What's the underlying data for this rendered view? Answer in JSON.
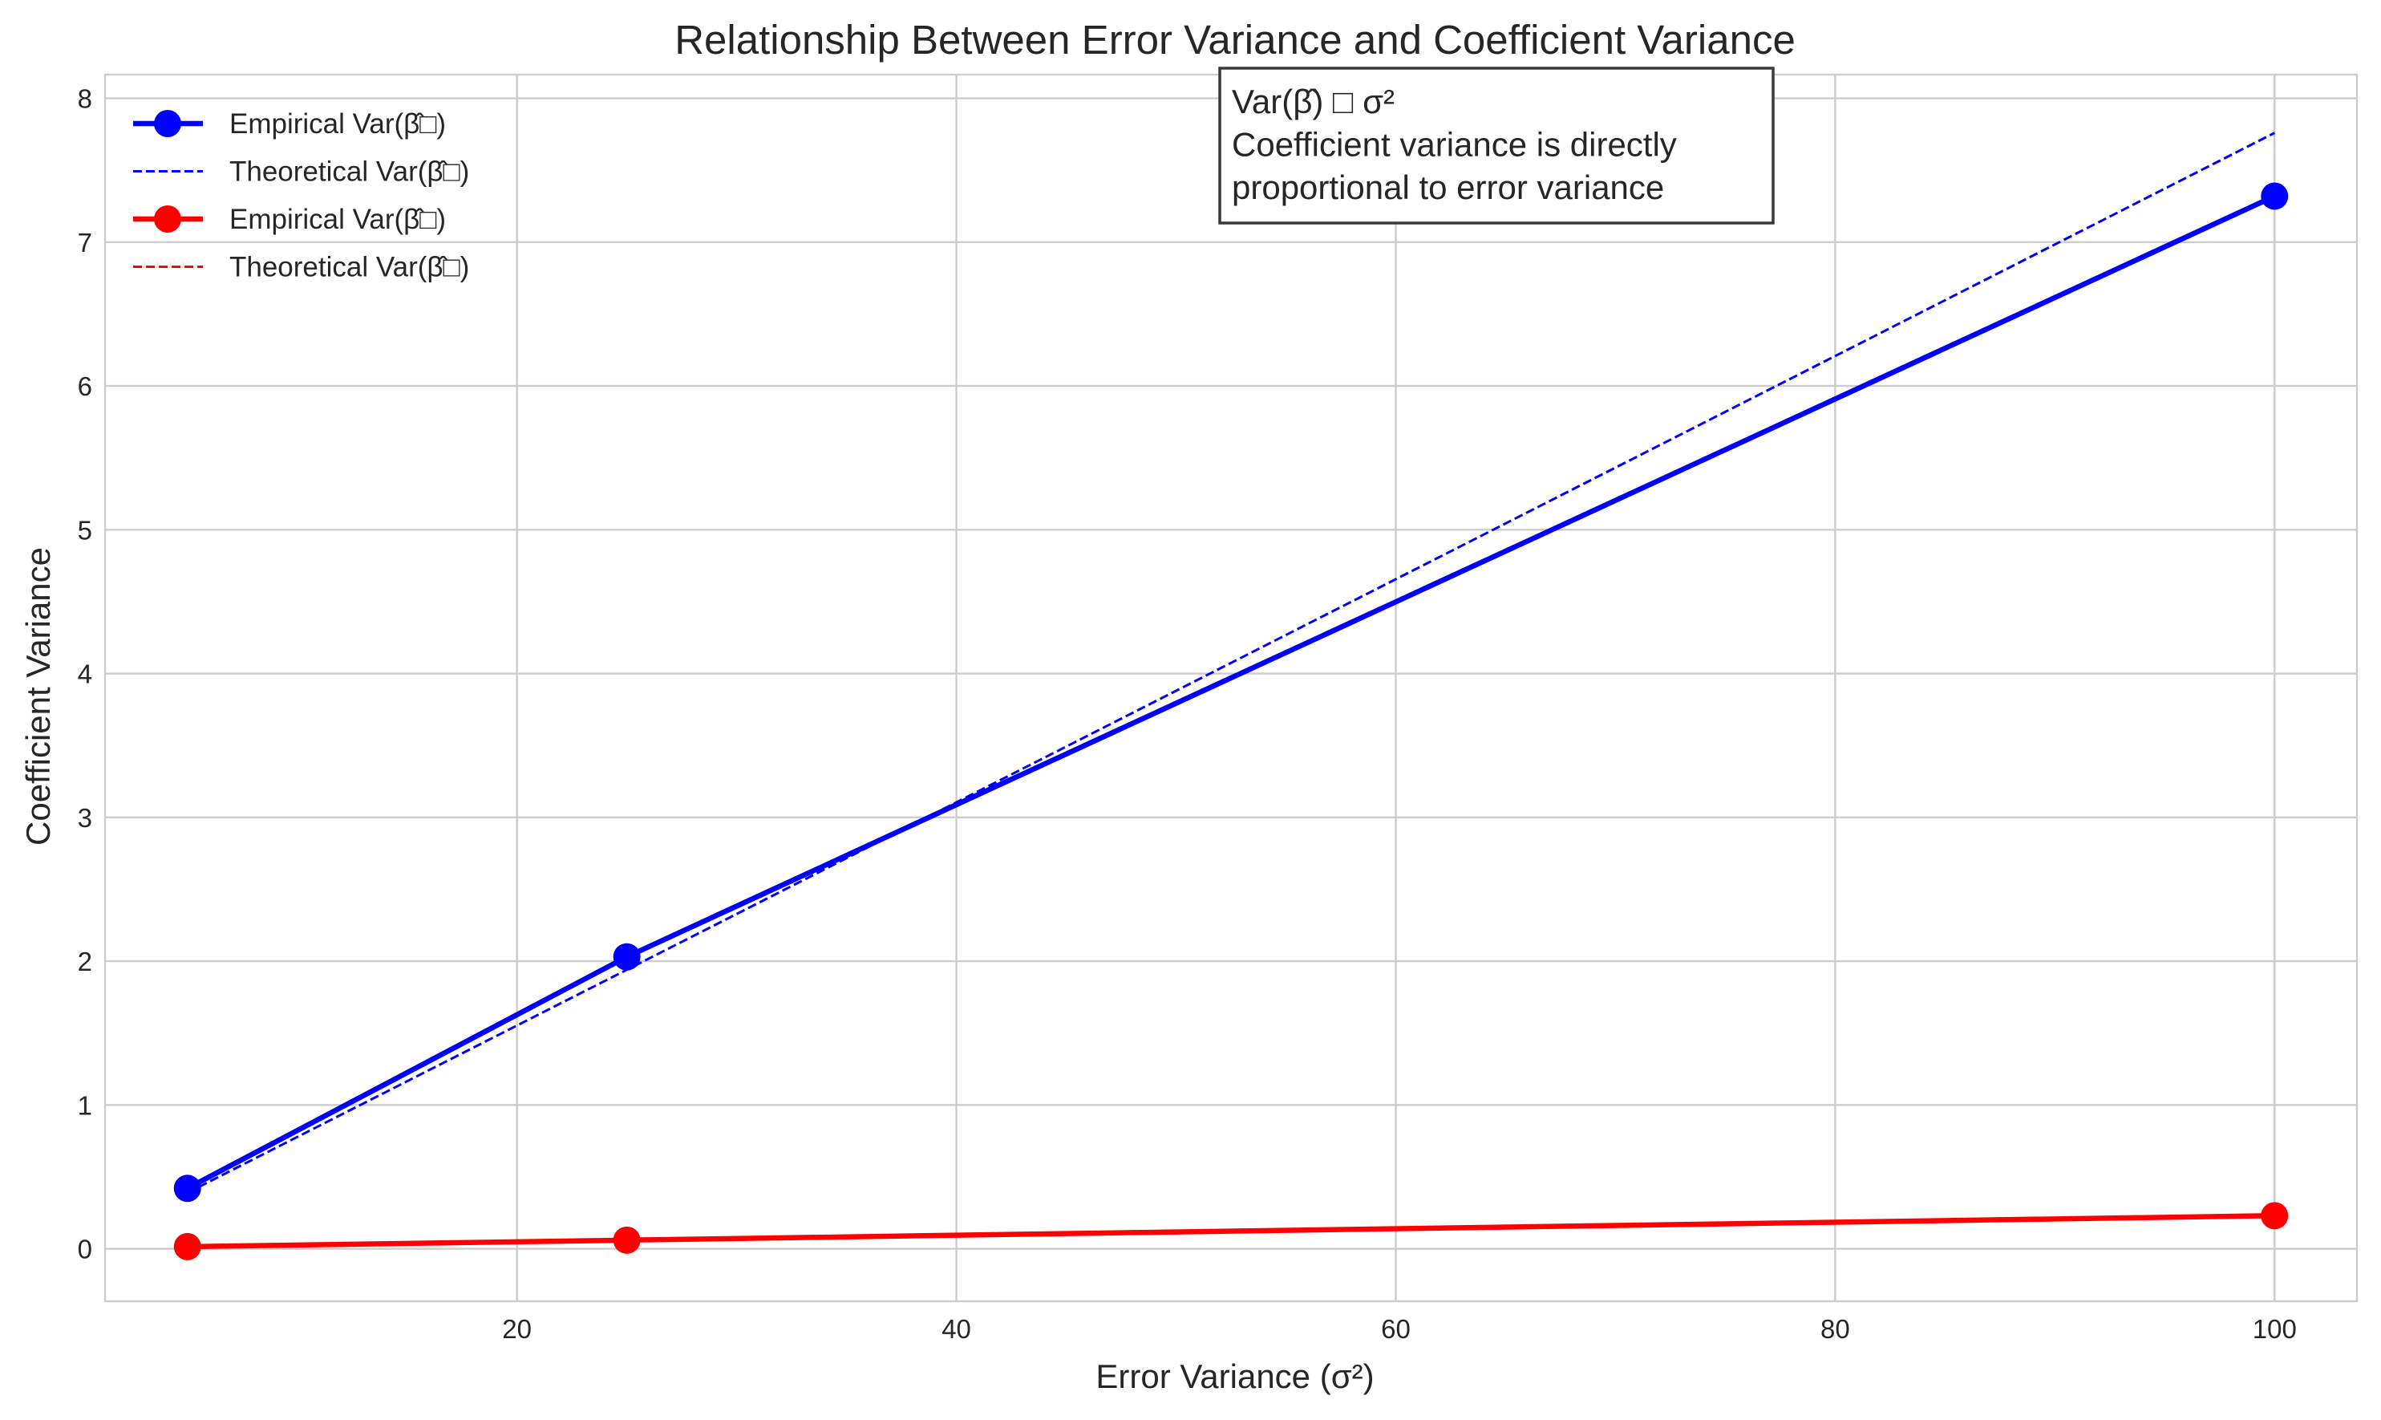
{
  "chart_data": {
    "type": "line",
    "title": "Relationship Between Error Variance and Coefficient Variance",
    "xlabel": "Error Variance (σ²)",
    "ylabel": "Coefficient Variance",
    "xlim": [
      1.25,
      103.75
    ],
    "ylim": [
      -0.365,
      8.165
    ],
    "xticks": [
      20,
      40,
      60,
      80,
      100
    ],
    "xtick_labels": [
      "20",
      "40",
      "60",
      "80",
      "100"
    ],
    "yticks": [
      0,
      1,
      2,
      3,
      4,
      5,
      6,
      7,
      8
    ],
    "ytick_labels": [
      "0",
      "1",
      "2",
      "3",
      "4",
      "5",
      "6",
      "7",
      "8"
    ],
    "grid": true,
    "legend_position": "top-left",
    "x": [
      5,
      25,
      100
    ],
    "series": [
      {
        "name": "Empirical Var(β̂₁)",
        "legend_label": "Empirical Var(β̂□)",
        "values": [
          0.42,
          2.03,
          7.32
        ],
        "color": "#0000ff",
        "style": "solid-marker"
      },
      {
        "name": "Theoretical Var(β̂₁)",
        "legend_label": "Theoretical Var(β̂□)",
        "values": [
          0.39,
          1.94,
          7.76
        ],
        "color": "#0000ff",
        "style": "dashed"
      },
      {
        "name": "Empirical Var(β̂₀)",
        "legend_label": "Empirical Var(β̂□)",
        "values": [
          0.015,
          0.06,
          0.23
        ],
        "color": "#ff0000",
        "style": "solid-marker"
      },
      {
        "name": "Theoretical Var(β̂₀)",
        "legend_label": "Theoretical Var(β̂□)",
        "values": [
          0.012,
          0.059,
          0.236
        ],
        "color": "#ff0000",
        "style": "dashed"
      }
    ],
    "annotation": {
      "lines": [
        "Var(β̂) □ σ²",
        "Coefficient variance is directly",
        "proportional to error variance"
      ]
    }
  }
}
